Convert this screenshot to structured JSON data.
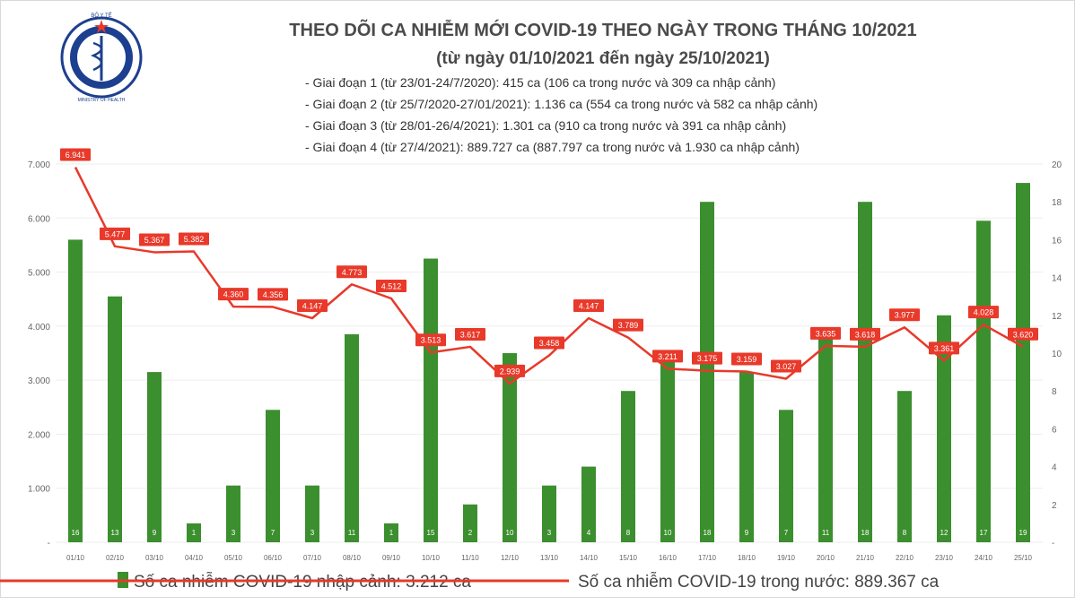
{
  "logo": {
    "top_text": "BỘ Y TẾ",
    "bottom_text": "MINISTRY OF HEALTH"
  },
  "header": {
    "title": "THEO DÕI CA NHIỄM MỚI COVID-19 THEO NGÀY TRONG THÁNG 10/2021",
    "subtitle": "(từ ngày 01/10/2021 đến ngày 25/10/2021)",
    "phases": [
      "- Giai đoạn 1 (từ 23/01-24/7/2020): 415 ca (106 ca trong nước và 309 ca nhập cảnh)",
      "- Giai đoạn 2 (từ 25/7/2020-27/01/2021): 1.136 ca (554 ca trong nước và 582 ca nhập cảnh)",
      "- Giai đoạn 3 (từ 28/01-26/4/2021): 1.301 ca (910 ca trong nước và 391 ca nhập cảnh)",
      "- Giai đoạn 4 (từ 27/4/2021): 889.727 ca (887.797 ca trong nước và 1.930 ca nhập cảnh)"
    ]
  },
  "colors": {
    "bar": "#3b8f2e",
    "line": "#e8392a",
    "label_box": "#e8392a"
  },
  "chart_data": {
    "type": "bar+line",
    "categories": [
      "01/10",
      "02/10",
      "03/10",
      "04/10",
      "05/10",
      "06/10",
      "07/10",
      "08/10",
      "09/10",
      "10/10",
      "11/10",
      "12/10",
      "13/10",
      "14/10",
      "15/10",
      "16/10",
      "17/10",
      "18/10",
      "19/10",
      "20/10",
      "21/10",
      "22/10",
      "23/10",
      "24/10",
      "25/10"
    ],
    "left_axis": {
      "ticks": [
        7000,
        6000,
        5000,
        4000,
        3000,
        2000,
        1000,
        0
      ],
      "tick_labels": [
        "7.000",
        "6.000",
        "5.000",
        "4.000",
        "3.000",
        "2.000",
        "1.000",
        "-"
      ],
      "range": [
        0,
        7000
      ]
    },
    "right_axis": {
      "ticks": [
        20,
        18,
        16,
        14,
        12,
        10,
        8,
        6,
        4,
        2,
        0
      ],
      "tick_labels": [
        "20",
        "18",
        "16",
        "14",
        "12",
        "10",
        "8",
        "6",
        "4",
        "2",
        "-"
      ],
      "range": [
        0,
        20
      ]
    },
    "series": [
      {
        "name": "Số ca nhiễm COVID-19 nhập cảnh: 3.212 ca",
        "kind": "bar",
        "axis": "right",
        "values": [
          16,
          13,
          9,
          1,
          3,
          7,
          3,
          11,
          1,
          15,
          2,
          10,
          3,
          4,
          8,
          10,
          18,
          9,
          7,
          11,
          18,
          8,
          12,
          17,
          19
        ],
        "labels": [
          "16",
          "13",
          "9",
          "1",
          "3",
          "7",
          "3",
          "11",
          "1",
          "15",
          "2",
          "10",
          "3",
          "4",
          "8",
          "10",
          "18",
          "9",
          "7",
          "11",
          "18",
          "8",
          "12",
          "17",
          "19"
        ]
      },
      {
        "name": "Số ca nhiễm COVID-19 trong nước: 889.367 ca",
        "kind": "line",
        "axis": "left",
        "values": [
          6941,
          5477,
          5367,
          5382,
          4360,
          4356,
          4147,
          4773,
          4512,
          3513,
          3617,
          2939,
          3458,
          4147,
          3789,
          3211,
          3175,
          3159,
          3027,
          3635,
          3618,
          3977,
          3361,
          4028,
          3620
        ],
        "labels": [
          "6.941",
          "5.477",
          "5.367",
          "5.382",
          "4.360",
          "4.356",
          "4.147",
          "4.773",
          "4.512",
          "3.513",
          "3.617",
          "2.939",
          "3.458",
          "4.147",
          "3.789",
          "3.211",
          "3.175",
          "3.159",
          "3.027",
          "3.635",
          "3.618",
          "3.977",
          "3.361",
          "4.028",
          "3.620"
        ]
      }
    ],
    "legend": "bottom"
  }
}
